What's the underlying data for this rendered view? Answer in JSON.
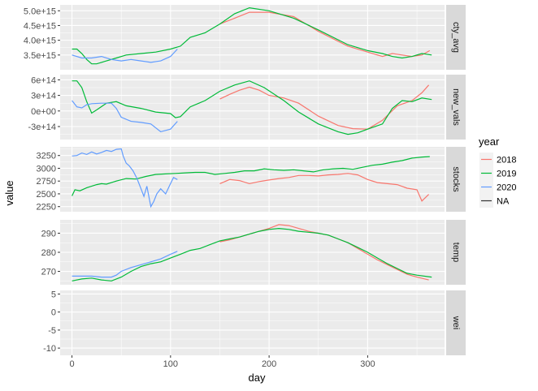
{
  "chart_data": {
    "type": "line",
    "facet": "rows",
    "xlabel": "day",
    "ylabel": "value",
    "xlim": [
      -12,
      378
    ],
    "x_ticks": [
      0,
      100,
      200,
      300
    ],
    "grid": true,
    "legend": {
      "title": "year",
      "placement": "right",
      "entries": [
        {
          "name": "2018",
          "color": "#F8766D"
        },
        {
          "name": "2019",
          "color": "#00BA38"
        },
        {
          "name": "2020",
          "color": "#619CFF"
        },
        {
          "name": "NA",
          "color": "#333333"
        }
      ]
    },
    "panels": [
      {
        "strip": "cty_avg",
        "ylim": [
          3000000000000000.0,
          5200000000000000.0
        ],
        "y_ticks": [
          3500000000000000.0,
          4000000000000000.0,
          4500000000000000.0,
          5000000000000000.0
        ],
        "y_tick_labels": [
          "3.5e+15",
          "4.0e+15",
          "4.5e+15",
          "5.0e+15"
        ],
        "series": [
          {
            "name": "2018",
            "x": [
              150,
              165,
              180,
              200,
              225,
              250,
              280,
              300,
              315,
              325,
              335,
              345,
              355,
              363
            ],
            "y": [
              4550000000000000.0,
              4750000000000000.0,
              4950000000000000.0,
              4950000000000000.0,
              4800000000000000.0,
              4300000000000000.0,
              3800000000000000.0,
              3600000000000000.0,
              3450000000000000.0,
              3550000000000000.0,
              3500000000000000.0,
              3450000000000000.0,
              3500000000000000.0,
              3650000000000000.0
            ]
          },
          {
            "name": "2019",
            "x": [
              0,
              5,
              10,
              15,
              20,
              25,
              35,
              45,
              55,
              70,
              85,
              100,
              110,
              120,
              135,
              150,
              165,
              180,
              200,
              225,
              250,
              280,
              300,
              315,
              325,
              335,
              345,
              355,
              365
            ],
            "y": [
              3700000000000000.0,
              3700000000000000.0,
              3550000000000000.0,
              3350000000000000.0,
              3200000000000000.0,
              3200000000000000.0,
              3300000000000000.0,
              3400000000000000.0,
              3500000000000000.0,
              3550000000000000.0,
              3600000000000000.0,
              3700000000000000.0,
              3800000000000000.0,
              4100000000000000.0,
              4250000000000000.0,
              4550000000000000.0,
              4900000000000000.0,
              5100000000000000.0,
              5000000000000000.0,
              4750000000000000.0,
              4350000000000000.0,
              3850000000000000.0,
              3650000000000000.0,
              3550000000000000.0,
              3450000000000000.0,
              3400000000000000.0,
              3450000000000000.0,
              3550000000000000.0,
              3500000000000000.0
            ]
          },
          {
            "name": "2020",
            "x": [
              0,
              10,
              20,
              30,
              40,
              50,
              60,
              70,
              80,
              90,
              100,
              107
            ],
            "y": [
              3500000000000000.0,
              3400000000000000.0,
              3400000000000000.0,
              3450000000000000.0,
              3350000000000000.0,
              3300000000000000.0,
              3350000000000000.0,
              3300000000000000.0,
              3250000000000000.0,
              3300000000000000.0,
              3450000000000000.0,
              3700000000000000.0
            ]
          }
        ]
      },
      {
        "strip": "new_vals",
        "ylim": [
          -550000000000000.0,
          700000000000000.0
        ],
        "y_ticks": [
          -300000000000000.0,
          0,
          300000000000000.0,
          600000000000000.0
        ],
        "y_tick_labels": [
          "-3e+14",
          "0e+00",
          "3e+14",
          "6e+14"
        ],
        "series": [
          {
            "name": "2018",
            "x": [
              150,
              160,
              170,
              180,
              190,
              200,
              215,
              230,
              250,
              270,
              285,
              300,
              315,
              330,
              345,
              355,
              362
            ],
            "y": [
              230000000000000.0,
              320000000000000.0,
              400000000000000.0,
              460000000000000.0,
              400000000000000.0,
              300000000000000.0,
              250000000000000.0,
              150000000000000.0,
              -100000000000000.0,
              -280000000000000.0,
              -340000000000000.0,
              -350000000000000.0,
              -180000000000000.0,
              100000000000000.0,
              200000000000000.0,
              350000000000000.0,
              500000000000000.0
            ]
          },
          {
            "name": "2019",
            "x": [
              0,
              5,
              10,
              15,
              20,
              25,
              35,
              45,
              55,
              70,
              85,
              100,
              105,
              110,
              120,
              135,
              150,
              165,
              180,
              195,
              215,
              230,
              250,
              270,
              280,
              290,
              300,
              315,
              325,
              335,
              345,
              355,
              365
            ],
            "y": [
              580000000000000.0,
              580000000000000.0,
              450000000000000.0,
              180000000000000.0,
              -40000000000000.0,
              20000000000000.0,
              150000000000000.0,
              180000000000000.0,
              100000000000000.0,
              50000000000000.0,
              -20000000000000.0,
              -50000000000000.0,
              -130000000000000.0,
              -110000000000000.0,
              80000000000000.0,
              200000000000000.0,
              380000000000000.0,
              500000000000000.0,
              580000000000000.0,
              450000000000000.0,
              200000000000000.0,
              -20000000000000.0,
              -250000000000000.0,
              -400000000000000.0,
              -450000000000000.0,
              -420000000000000.0,
              -350000000000000.0,
              -250000000000000.0,
              50000000000000.0,
              200000000000000.0,
              180000000000000.0,
              250000000000000.0,
              220000000000000.0
            ]
          },
          {
            "name": "2020",
            "x": [
              0,
              5,
              10,
              15,
              20,
              30,
              40,
              45,
              50,
              60,
              70,
              80,
              90,
              100,
              107
            ],
            "y": [
              200000000000000.0,
              80000000000000.0,
              60000000000000.0,
              120000000000000.0,
              140000000000000.0,
              150000000000000.0,
              150000000000000.0,
              50000000000000.0,
              -120000000000000.0,
              -200000000000000.0,
              -220000000000000.0,
              -250000000000000.0,
              -400000000000000.0,
              -350000000000000.0,
              -200000000000000.0
            ]
          }
        ]
      },
      {
        "strip": "stocks",
        "ylim": [
          2150,
          3420
        ],
        "y_ticks": [
          2250,
          2500,
          2750,
          3000,
          3250
        ],
        "y_tick_labels": [
          "2250",
          "2500",
          "2750",
          "3000",
          "3250"
        ],
        "series": [
          {
            "name": "2018",
            "x": [
              150,
              160,
              170,
              180,
              190,
              200,
              210,
              220,
              230,
              240,
              250,
              260,
              270,
              280,
              290,
              300,
              310,
              320,
              330,
              340,
              350,
              355,
              362
            ],
            "y": [
              2700,
              2780,
              2760,
              2700,
              2740,
              2770,
              2800,
              2820,
              2860,
              2860,
              2850,
              2870,
              2880,
              2900,
              2870,
              2780,
              2720,
              2700,
              2680,
              2610,
              2580,
              2360,
              2490
            ]
          },
          {
            "name": "2019",
            "x": [
              0,
              3,
              8,
              15,
              25,
              30,
              35,
              45,
              55,
              65,
              75,
              85,
              95,
              105,
              115,
              125,
              135,
              145,
              155,
              165,
              175,
              185,
              195,
              205,
              215,
              225,
              235,
              245,
              255,
              265,
              275,
              285,
              295,
              305,
              315,
              325,
              335,
              345,
              355,
              363
            ],
            "y": [
              2460,
              2580,
              2560,
              2620,
              2680,
              2700,
              2690,
              2750,
              2800,
              2790,
              2840,
              2880,
              2890,
              2900,
              2910,
              2920,
              2920,
              2880,
              2900,
              2920,
              2950,
              2950,
              2990,
              2970,
              2960,
              2970,
              2950,
              2930,
              2970,
              2990,
              3000,
              2980,
              3020,
              3060,
              3080,
              3120,
              3150,
              3200,
              3220,
              3230
            ]
          },
          {
            "name": "2020",
            "x": [
              0,
              5,
              10,
              15,
              20,
              25,
              30,
              35,
              40,
              45,
              50,
              52,
              55,
              58,
              62,
              66,
              70,
              73,
              76,
              80,
              83,
              86,
              90,
              95,
              100,
              103,
              107
            ],
            "y": [
              3240,
              3250,
              3300,
              3270,
              3320,
              3280,
              3310,
              3350,
              3330,
              3370,
              3380,
              3240,
              3100,
              3050,
              2950,
              2800,
              2600,
              2450,
              2650,
              2250,
              2350,
              2500,
              2600,
              2500,
              2700,
              2820,
              2780
            ]
          }
        ]
      },
      {
        "strip": "temp",
        "ylim": [
          263,
          297
        ],
        "y_ticks": [
          270,
          280,
          290
        ],
        "y_tick_labels": [
          "270",
          "280",
          "290"
        ],
        "series": [
          {
            "name": "2018",
            "x": [
              150,
              160,
              170,
              180,
              190,
              200,
              210,
              220,
              230,
              240,
              250,
              260,
              270,
              280,
              290,
              300,
              310,
              320,
              330,
              340,
              350,
              362
            ],
            "y": [
              285.5,
              286.5,
              288,
              289.5,
              291,
              292.5,
              294.5,
              294,
              292.5,
              291,
              290,
              289,
              287,
              285,
              282,
              279,
              276,
              273.5,
              271,
              268.5,
              267,
              265.5
            ]
          },
          {
            "name": "2019",
            "x": [
              0,
              10,
              20,
              30,
              40,
              50,
              60,
              70,
              80,
              90,
              100,
              110,
              120,
              130,
              140,
              150,
              160,
              170,
              180,
              190,
              200,
              210,
              220,
              230,
              240,
              250,
              260,
              270,
              280,
              290,
              300,
              310,
              320,
              330,
              340,
              350,
              365
            ],
            "y": [
              265,
              266,
              266.5,
              265.5,
              265,
              267,
              270,
              272.5,
              274,
              275,
              277,
              279,
              281,
              282,
              284,
              286,
              287,
              288,
              289.5,
              291,
              292,
              292.5,
              292,
              291,
              290.5,
              290,
              289,
              287,
              285,
              282.5,
              280,
              277,
              274,
              271.5,
              269,
              268,
              267
            ]
          },
          {
            "name": "2020",
            "x": [
              0,
              10,
              20,
              30,
              40,
              45,
              50,
              60,
              70,
              80,
              90,
              100,
              107
            ],
            "y": [
              267.5,
              267.5,
              267.5,
              267,
              267,
              268,
              270,
              272,
              273.5,
              275,
              276.5,
              279,
              280.5
            ]
          }
        ]
      },
      {
        "strip": "wei",
        "ylim": [
          -12,
          6
        ],
        "y_ticks": [
          -10,
          -5,
          0,
          5
        ],
        "y_tick_labels": [
          "-10",
          "-5",
          "0",
          "5"
        ],
        "series": []
      }
    ]
  }
}
